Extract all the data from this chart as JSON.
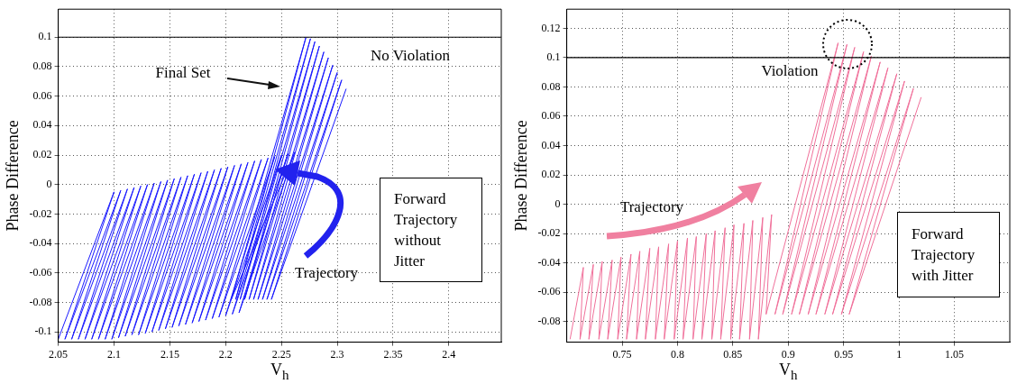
{
  "chart_data": [
    {
      "type": "line",
      "xlabel": "V$_{h}$",
      "ylabel": "Phase Difference",
      "xlim": [
        2.05,
        2.447
      ],
      "ylim": [
        -0.107,
        0.119
      ],
      "xticks": [
        2.05,
        2.1,
        2.15,
        2.2,
        2.25,
        2.3,
        2.35,
        2.4
      ],
      "yticks": [
        -0.1,
        -0.08,
        -0.06,
        -0.04,
        -0.02,
        0,
        0.02,
        0.04,
        0.06,
        0.08,
        0.1
      ],
      "grid": true,
      "legend": false,
      "ref_lines": [
        {
          "axis": "y",
          "value": 0.1,
          "color": "#000000"
        }
      ],
      "annotations": [
        "No Violation",
        "Final Set",
        "Forward Trajectory without Jitter",
        "Trajectory"
      ],
      "series": [
        {
          "color": "#1a1aff",
          "x": [
            2.05,
            2.1,
            2.056,
            2.106,
            2.062,
            2.112,
            2.068,
            2.118,
            2.074,
            2.124,
            2.08,
            2.13,
            2.086,
            2.136,
            2.092,
            2.142,
            2.098,
            2.148,
            2.104,
            2.154,
            2.11,
            2.16,
            2.116,
            2.166,
            2.122,
            2.172,
            2.128,
            2.178,
            2.134,
            2.184,
            2.14,
            2.19,
            2.146,
            2.196,
            2.152,
            2.202,
            2.158,
            2.208,
            2.164,
            2.214,
            2.17,
            2.22,
            2.176,
            2.226,
            2.182,
            2.232,
            2.188,
            2.238,
            2.194,
            2.244,
            2.2,
            2.25,
            2.206,
            2.256,
            2.212,
            2.262,
            2.205,
            2.272,
            2.209,
            2.276,
            2.213,
            2.28,
            2.217,
            2.284,
            2.221,
            2.288,
            2.225,
            2.292,
            2.229,
            2.296,
            2.233,
            2.3,
            2.237,
            2.304,
            2.241,
            2.308
          ],
          "values": [
            -0.105,
            -0.005,
            -0.105,
            -0.004,
            -0.105,
            -0.003,
            -0.105,
            -0.002,
            -0.105,
            -0.001,
            -0.105,
            0.0,
            -0.105,
            0.001,
            -0.105,
            0.002,
            -0.105,
            0.003,
            -0.104,
            0.004,
            -0.103,
            0.005,
            -0.102,
            0.006,
            -0.102,
            0.007,
            -0.101,
            0.008,
            -0.1,
            0.009,
            -0.099,
            0.01,
            -0.098,
            0.011,
            -0.097,
            0.012,
            -0.096,
            0.013,
            -0.095,
            0.014,
            -0.094,
            0.015,
            -0.093,
            0.016,
            -0.092,
            0.017,
            -0.091,
            0.018,
            -0.09,
            0.019,
            -0.089,
            0.02,
            -0.088,
            0.021,
            -0.087,
            0.022,
            -0.078,
            0.1,
            -0.078,
            0.099,
            -0.078,
            0.097,
            -0.078,
            0.094,
            -0.078,
            0.09,
            -0.078,
            0.086,
            -0.078,
            0.081,
            -0.078,
            0.076,
            -0.078,
            0.071,
            -0.078,
            0.065
          ]
        }
      ]
    },
    {
      "type": "line",
      "xlabel": "V$_{h}$",
      "ylabel": "Phase Difference",
      "xlim": [
        0.7,
        1.1
      ],
      "ylim": [
        -0.094,
        0.133
      ],
      "xticks": [
        0.75,
        0.8,
        0.85,
        0.9,
        0.95,
        1,
        1.05
      ],
      "yticks": [
        -0.08,
        -0.06,
        -0.04,
        -0.02,
        0,
        0.02,
        0.04,
        0.06,
        0.08,
        0.1,
        0.12
      ],
      "grid": true,
      "legend": false,
      "ref_lines": [
        {
          "axis": "y",
          "value": 0.1,
          "color": "#000000"
        }
      ],
      "annotations": [
        "Violation",
        "Forward Trajectory with Jitter",
        "Trajectory"
      ],
      "series": [
        {
          "color": "#f0709a",
          "x": [
            0.703,
            0.715,
            0.712,
            0.724,
            0.72,
            0.732,
            0.729,
            0.741,
            0.737,
            0.749,
            0.746,
            0.758,
            0.754,
            0.766,
            0.763,
            0.775,
            0.771,
            0.783,
            0.78,
            0.792,
            0.788,
            0.8,
            0.797,
            0.809,
            0.805,
            0.817,
            0.814,
            0.826,
            0.822,
            0.834,
            0.831,
            0.843,
            0.839,
            0.851,
            0.848,
            0.86,
            0.856,
            0.868,
            0.865,
            0.877,
            0.873,
            0.885,
            0.88,
            0.945,
            0.888,
            0.953,
            0.895,
            0.96,
            0.903,
            0.968,
            0.91,
            0.975,
            0.918,
            0.983,
            0.925,
            0.99,
            0.933,
            0.998,
            0.94,
            1.005,
            0.948,
            1.013,
            0.955,
            1.02
          ],
          "values": [
            -0.092,
            -0.043,
            -0.092,
            -0.041,
            -0.092,
            -0.039,
            -0.092,
            -0.038,
            -0.092,
            -0.036,
            -0.092,
            -0.034,
            -0.092,
            -0.032,
            -0.092,
            -0.03,
            -0.092,
            -0.029,
            -0.092,
            -0.027,
            -0.092,
            -0.025,
            -0.092,
            -0.023,
            -0.092,
            -0.022,
            -0.092,
            -0.02,
            -0.092,
            -0.018,
            -0.092,
            -0.016,
            -0.092,
            -0.014,
            -0.092,
            -0.013,
            -0.092,
            -0.011,
            -0.092,
            -0.009,
            -0.092,
            -0.007,
            -0.075,
            0.11,
            -0.075,
            0.109,
            -0.075,
            0.107,
            -0.075,
            0.104,
            -0.075,
            0.101,
            -0.075,
            0.097,
            -0.075,
            0.093,
            -0.075,
            0.089,
            -0.075,
            0.084,
            -0.075,
            0.079,
            -0.075,
            0.073
          ]
        }
      ]
    }
  ]
}
